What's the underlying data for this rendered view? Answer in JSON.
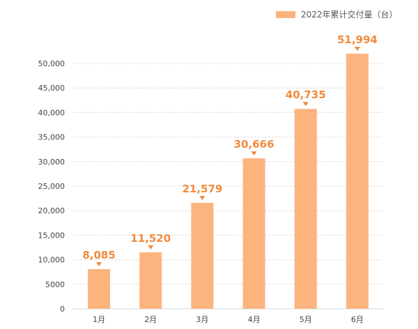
{
  "chart_data": {
    "type": "bar",
    "categories": [
      "1月",
      "2月",
      "3月",
      "4月",
      "5月",
      "6月"
    ],
    "series": [
      {
        "name": "2022年累计交付量（台）",
        "values": [
          8085,
          11520,
          21579,
          30666,
          40735,
          51994
        ]
      }
    ],
    "data_labels": [
      "8,085",
      "11,520",
      "21,579",
      "30,666",
      "40,735",
      "51,994"
    ],
    "yticks": [
      0,
      5000,
      10000,
      15000,
      20000,
      25000,
      30000,
      35000,
      40000,
      45000,
      50000
    ],
    "ytick_labels": [
      "0",
      "5000",
      "10,000",
      "15,000",
      "20,000",
      "25,000",
      "30,000",
      "35,000",
      "40,000",
      "45,000",
      "50,000"
    ],
    "ylim": [
      0,
      50000
    ],
    "grid": true,
    "legend_position": "top-right",
    "colors": {
      "bar": "#fcb47f",
      "label": "#f28a3c",
      "grid": "#dcdcdc",
      "axis_text": "#444444"
    }
  }
}
